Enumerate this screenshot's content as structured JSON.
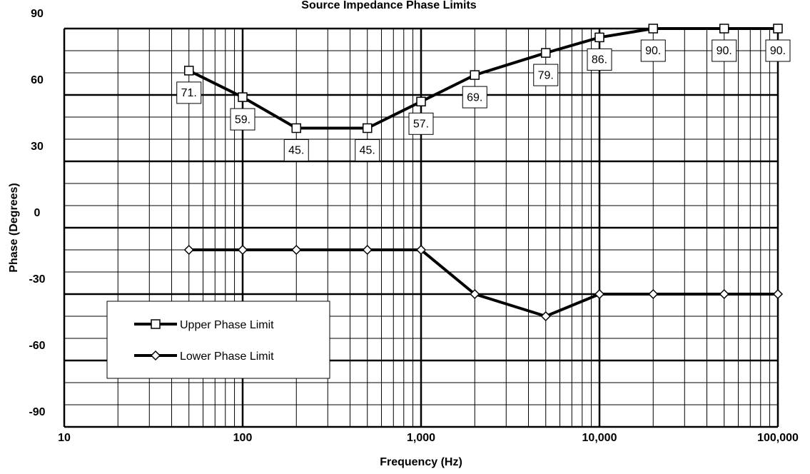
{
  "chart_data": {
    "type": "line",
    "title": "Source Impedance Phase Limits",
    "x_label": "Frequency (Hz)",
    "y_label": "Phase (Degrees)",
    "x_scale": "log",
    "xlim": [
      10,
      100000
    ],
    "xticks": [
      10,
      100,
      {
        "value": 1000,
        "label": "1,000"
      },
      {
        "value": 10000,
        "label": "10,000"
      },
      {
        "value": 100000,
        "label": "100,000"
      }
    ],
    "ylim": [
      -90,
      90
    ],
    "yticks": [
      -90,
      -60,
      -30,
      0,
      30,
      60,
      90
    ],
    "grid": true,
    "legend_position": "lower left",
    "x": [
      50,
      100,
      200,
      500,
      1000,
      2000,
      5000,
      10000,
      20000,
      50000,
      100000
    ],
    "series": [
      {
        "name": "Upper Phase Limit",
        "color": "#000000",
        "marker": "square",
        "values": [
          71,
          59,
          45,
          45,
          57,
          69,
          79,
          86,
          90,
          90,
          90
        ],
        "value_labels": [
          "71.",
          "59.",
          "45.",
          "45.",
          "57.",
          "69.",
          "79.",
          "86.",
          "90.",
          "90.",
          "90."
        ]
      },
      {
        "name": "Lower Phase Limit",
        "color": "#000000",
        "marker": "diamond",
        "values": [
          -10,
          -10,
          -10,
          -10,
          -10,
          -30,
          -40,
          -30,
          -30,
          -30,
          -30
        ]
      }
    ]
  }
}
